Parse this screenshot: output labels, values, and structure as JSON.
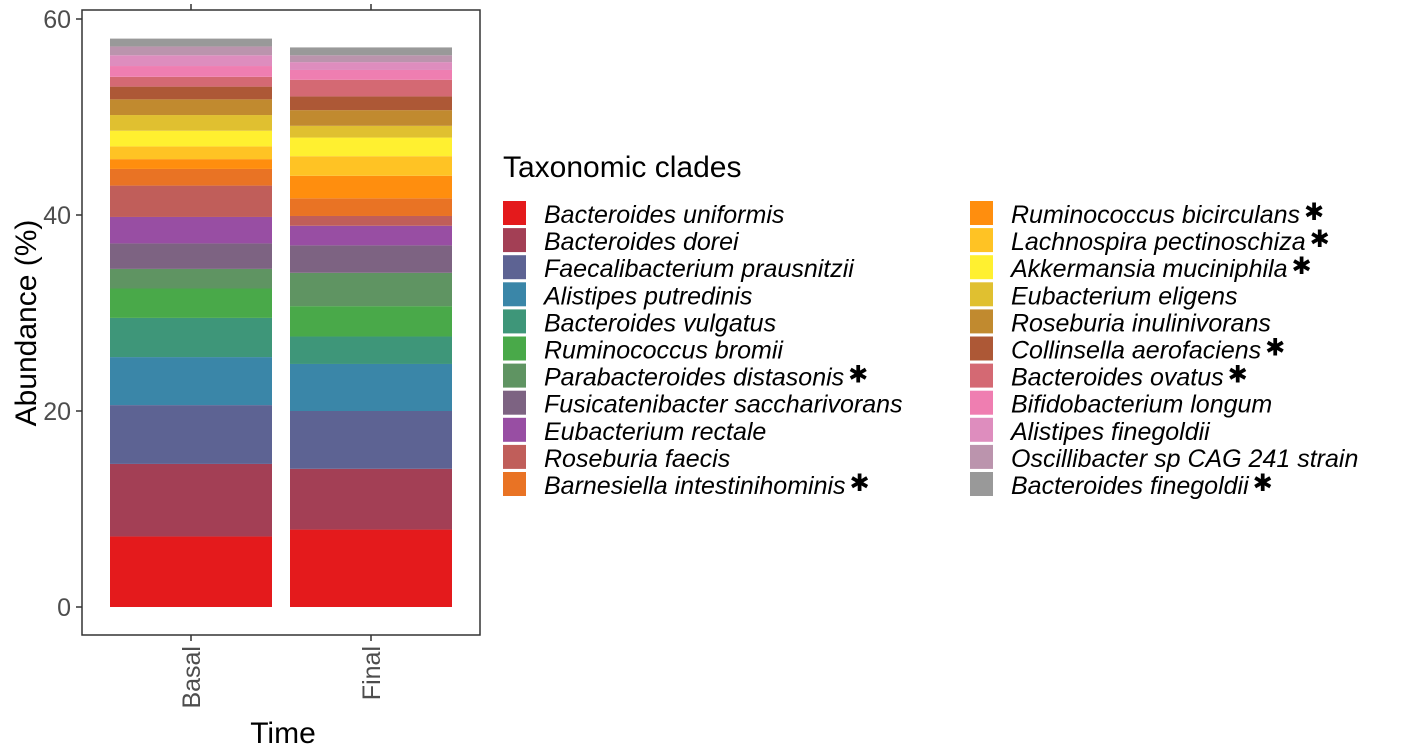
{
  "chart_data": {
    "type": "bar",
    "stacked": true,
    "categories": [
      "Basal",
      "Final"
    ],
    "xlabel": "Time",
    "ylabel": "Abundance (%)",
    "ylim": [
      0,
      60
    ],
    "yticks": [
      "0",
      "20",
      "40",
      "60"
    ],
    "grid": false,
    "legend_title": "Taxonomic clades",
    "legend_position": "right",
    "series": [
      {
        "name": "Bacteroides uniformis",
        "color": "#E41A1C",
        "significant": false,
        "values": [
          7.2,
          7.9
        ]
      },
      {
        "name": "Bacteroides dorei",
        "color": "#A33F55",
        "significant": false,
        "values": [
          7.4,
          6.2
        ]
      },
      {
        "name": "Faecalibacterium prausnitzii",
        "color": "#5D6393",
        "significant": false,
        "values": [
          6.0,
          5.9
        ]
      },
      {
        "name": "Alistipes putredinis",
        "color": "#3A86A8",
        "significant": false,
        "values": [
          4.9,
          4.8
        ]
      },
      {
        "name": "Bacteroides vulgatus",
        "color": "#3E9679",
        "significant": false,
        "values": [
          4.0,
          2.8
        ]
      },
      {
        "name": "Ruminococcus bromii",
        "color": "#49A949",
        "significant": false,
        "values": [
          3.0,
          3.1
        ]
      },
      {
        "name": "Parabacteroides distasonis",
        "color": "#5F9462",
        "significant": true,
        "values": [
          2.0,
          3.4
        ]
      },
      {
        "name": "Fusicatenibacter saccharivorans",
        "color": "#7D6382",
        "significant": false,
        "values": [
          2.6,
          2.8
        ]
      },
      {
        "name": "Eubacterium rectale",
        "color": "#984EA3",
        "significant": false,
        "values": [
          2.7,
          2.0
        ]
      },
      {
        "name": "Roseburia faecis",
        "color": "#C05E5A",
        "significant": false,
        "values": [
          3.2,
          1.0
        ]
      },
      {
        "name": "Barnesiella intestinihominis",
        "color": "#E97324",
        "significant": true,
        "values": [
          1.7,
          1.8
        ]
      },
      {
        "name": "Ruminococcus bicirculans",
        "color": "#FF8E0E",
        "significant": true,
        "values": [
          1.0,
          2.3
        ]
      },
      {
        "name": "Lachnospira pectinoschiza",
        "color": "#FFC324",
        "significant": true,
        "values": [
          1.3,
          2.0
        ]
      },
      {
        "name": "Akkermansia muciniphila",
        "color": "#FFF030",
        "significant": true,
        "values": [
          1.6,
          1.9
        ]
      },
      {
        "name": "Eubacterium eligens",
        "color": "#E0C030",
        "significant": false,
        "values": [
          1.6,
          1.2
        ]
      },
      {
        "name": "Roseburia inulinivorans",
        "color": "#C18A2F",
        "significant": false,
        "values": [
          1.6,
          1.6
        ]
      },
      {
        "name": "Collinsella aerofaciens",
        "color": "#AD5836",
        "significant": true,
        "values": [
          1.3,
          1.4
        ]
      },
      {
        "name": "Bacteroides ovatus",
        "color": "#D46973",
        "significant": true,
        "values": [
          1.0,
          1.7
        ]
      },
      {
        "name": "Bifidobacterium longum",
        "color": "#EF7EB1",
        "significant": false,
        "values": [
          1.1,
          1.0
        ]
      },
      {
        "name": "Alistipes finegoldii",
        "color": "#DE8DBE",
        "significant": false,
        "values": [
          1.1,
          0.8
        ]
      },
      {
        "name": "Oscillibacter sp CAG 241 strain",
        "color": "#BB94AD",
        "significant": false,
        "values": [
          0.9,
          0.7
        ]
      },
      {
        "name": "Bacteroides finegoldii",
        "color": "#999999",
        "significant": true,
        "values": [
          0.8,
          0.8
        ]
      }
    ]
  }
}
